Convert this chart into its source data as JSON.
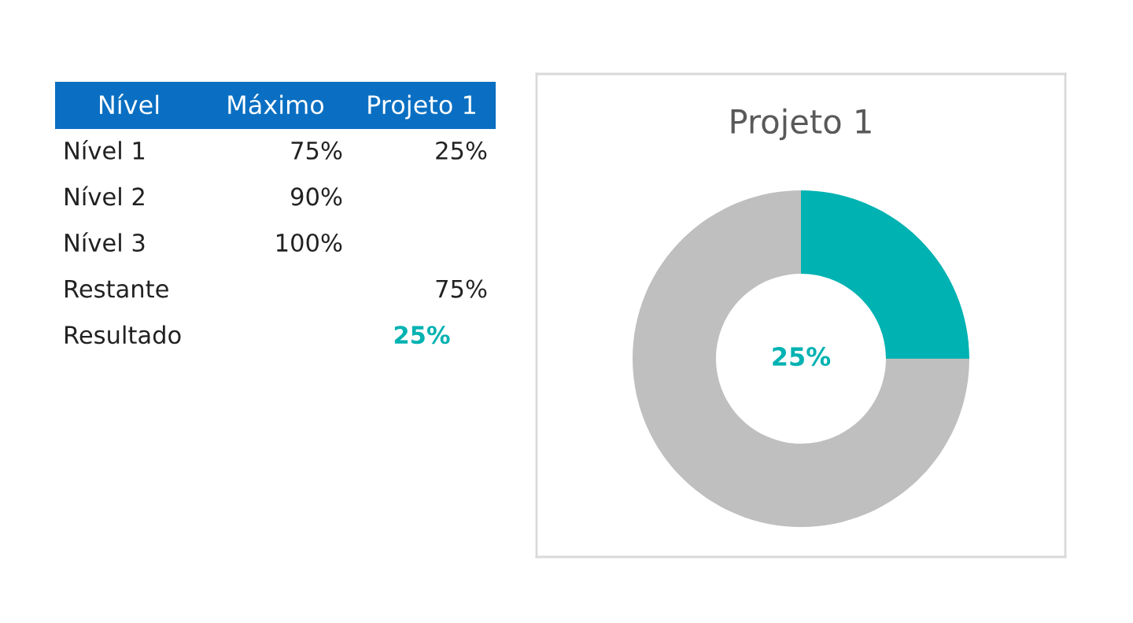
{
  "chart_data": [
    {
      "type": "other",
      "categories": [
        "Nível",
        "Máximo",
        "Projeto 1"
      ],
      "y_categories": [
        "Nível 1",
        "Nível 2",
        "Nível 3",
        "Restante",
        "Resultado"
      ],
      "cell_labels": [
        [
          "75%",
          "25%"
        ],
        [
          "90%",
          null
        ],
        [
          "100%",
          null
        ],
        [
          null,
          "75%"
        ],
        [
          null,
          "25%"
        ]
      ],
      "colors": [
        "#0a6fc2",
        "#00b2b2"
      ]
    },
    {
      "type": "donut",
      "title": "Projeto 1",
      "categories": [
        null,
        null
      ],
      "values": [
        25,
        75
      ],
      "colors": [
        "#00b2b2",
        "#bfbfbf"
      ],
      "annotations": [
        "25%"
      ],
      "legend": false
    }
  ]
}
